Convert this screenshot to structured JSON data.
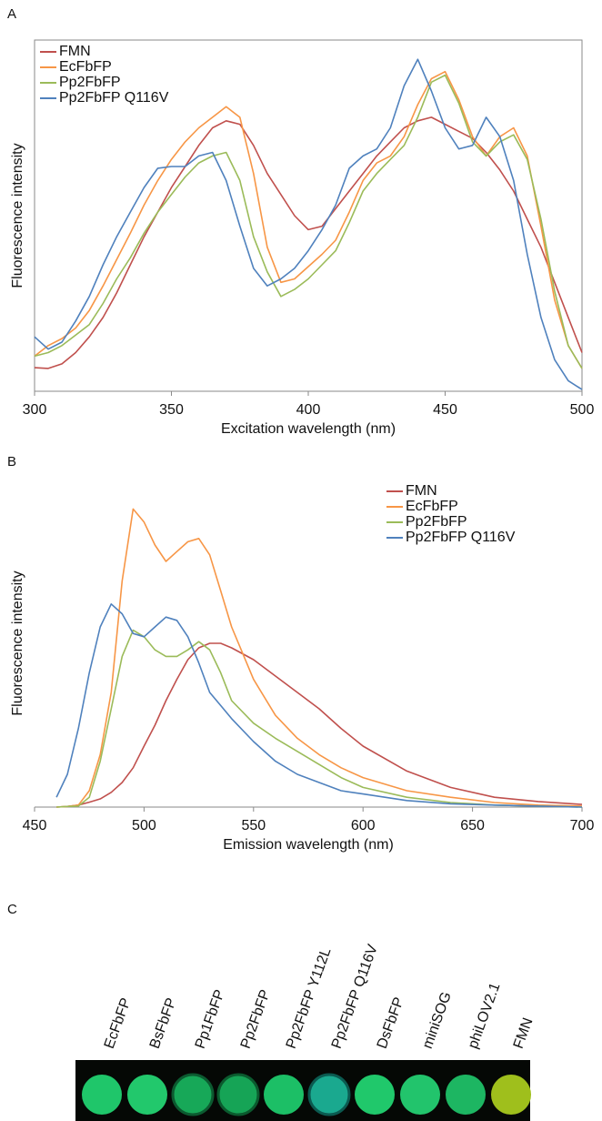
{
  "chart_data": [
    {
      "type": "line",
      "label": "A",
      "xlabel": "Excitation wavelength (nm)",
      "ylabel": "Fluorescence intensity",
      "x": [
        300,
        305,
        310,
        315,
        320,
        325,
        330,
        335,
        340,
        345,
        350,
        355,
        360,
        365,
        370,
        375,
        380,
        385,
        390,
        395,
        400,
        405,
        410,
        415,
        420,
        425,
        430,
        435,
        440,
        445,
        450,
        455,
        460,
        465,
        470,
        475,
        480,
        485,
        490,
        495,
        500
      ],
      "xlim": [
        300,
        500
      ],
      "xticks": [
        300,
        350,
        400,
        450,
        500
      ],
      "ylim": [
        0,
        100
      ],
      "legend": "upper left",
      "frame": true,
      "series": [
        {
          "name": "FMN",
          "color": "#c0504d",
          "values": [
            6.7,
            6.5,
            7.8,
            11,
            15.5,
            21,
            28,
            36,
            44,
            51,
            58,
            64,
            70,
            75,
            77,
            76,
            70,
            62,
            56,
            50,
            46,
            47,
            52,
            57,
            62,
            67,
            71,
            75,
            77,
            78,
            76,
            74,
            72,
            68,
            63,
            57,
            49,
            41,
            31,
            21,
            11
          ]
        },
        {
          "name": "EcFbFP",
          "color": "#f79646",
          "values": [
            10,
            13,
            15,
            18,
            23,
            30,
            37.5,
            45,
            53,
            60,
            66,
            71,
            75,
            78,
            81,
            78,
            62,
            41,
            31,
            32,
            35.5,
            39,
            43,
            51,
            60,
            65,
            67,
            72.5,
            81.6,
            89,
            91,
            83,
            72.5,
            67,
            72.5,
            75,
            67,
            47,
            26,
            13,
            6.5
          ]
        },
        {
          "name": "Pp2FbFP",
          "color": "#9bbb59",
          "values": [
            10,
            11,
            13,
            16,
            19,
            25,
            32,
            38,
            45,
            51,
            56,
            61,
            65,
            67,
            68,
            60,
            44,
            34,
            27,
            29,
            32,
            36,
            40,
            48,
            57,
            62,
            66,
            70,
            78,
            88,
            90,
            82,
            71,
            67,
            71,
            73,
            66,
            49,
            28.5,
            13,
            6.5
          ]
        },
        {
          "name": "Pp2FbFP Q116V",
          "color": "#4f81bd",
          "values": [
            15.5,
            12,
            14,
            20,
            27,
            36,
            44,
            51,
            58,
            63.5,
            64,
            64,
            67,
            68,
            60,
            47,
            35,
            30,
            32,
            35,
            40,
            46,
            53,
            63.5,
            67,
            69,
            75,
            87,
            94.5,
            85.5,
            75,
            69,
            70,
            78,
            72.5,
            60,
            39,
            21,
            9,
            3,
            0.5
          ]
        }
      ]
    },
    {
      "type": "line",
      "label": "B",
      "xlabel": "Emission wavelength (nm)",
      "ylabel": "Fluorescence intensity",
      "x": [
        460,
        465,
        470,
        475,
        480,
        485,
        490,
        495,
        500,
        505,
        510,
        515,
        520,
        525,
        530,
        535,
        540,
        550,
        560,
        570,
        580,
        590,
        600,
        620,
        640,
        660,
        680,
        700
      ],
      "xlim": [
        450,
        700
      ],
      "xticks": [
        450,
        500,
        550,
        600,
        650,
        700
      ],
      "ylim": [
        0,
        100
      ],
      "legend": "upper right",
      "frame": false,
      "series": [
        {
          "name": "FMN",
          "color": "#c0504d",
          "values": [
            0,
            0.2,
            0.6,
            1.5,
            2.5,
            4.5,
            7.5,
            12,
            18.6,
            25,
            32.5,
            39,
            45,
            48.6,
            50,
            50,
            48.6,
            45,
            40,
            35,
            30,
            24,
            18.6,
            11,
            6,
            3,
            1.7,
            0.8
          ]
        },
        {
          "name": "EcFbFP",
          "color": "#f79646",
          "values": [
            0,
            0.2,
            0.6,
            5,
            16,
            35,
            69,
            91,
            87,
            80,
            75,
            78,
            81,
            82,
            77,
            66,
            55,
            39,
            28,
            21,
            16,
            12,
            9,
            5,
            3,
            1.4,
            0.6,
            0.3
          ]
        },
        {
          "name": "Pp2FbFP",
          "color": "#9bbb59",
          "values": [
            0,
            0.2,
            0.3,
            3,
            14,
            30,
            46,
            54,
            52,
            48,
            46,
            46,
            48,
            50.5,
            48,
            41,
            32.5,
            25.6,
            21,
            17,
            13,
            9,
            6,
            3,
            1.4,
            0.6,
            0.3,
            0
          ]
        },
        {
          "name": "Pp2FbFP Q116V",
          "color": "#4f81bd",
          "values": [
            3,
            10,
            24,
            41,
            55,
            62,
            59,
            53,
            52,
            55,
            58,
            57,
            52,
            44,
            35,
            31,
            27,
            20,
            14,
            10,
            7.5,
            5,
            4,
            2,
            1,
            0.6,
            0.3,
            0
          ]
        }
      ]
    }
  ],
  "panel_c": {
    "label": "C",
    "samples": [
      "EcFbFP",
      "BsFbFP",
      "Pp1FbFP",
      "Pp2FbFP",
      "Pp2FbFP Y112L",
      "Pp2FbFP Q116V",
      "DsFbFP",
      "miniSOG",
      "phiLOV2.1",
      "FMN"
    ]
  }
}
